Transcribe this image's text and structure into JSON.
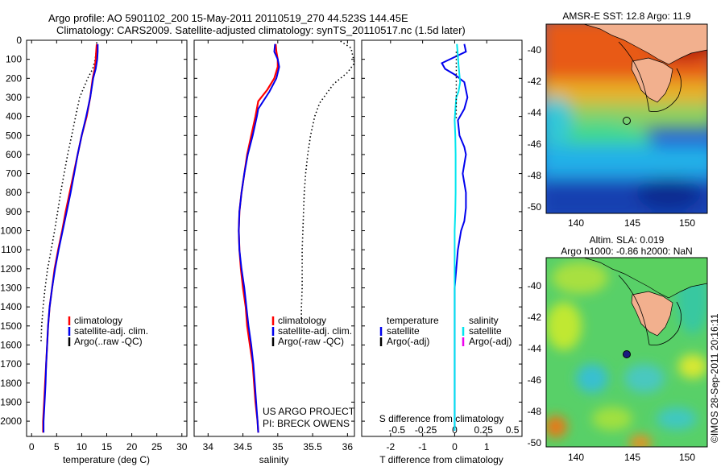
{
  "figure": {
    "title_line1": "Argo profile: AO 5901102_200 15-May-2011 20110519_270 44.523S 144.45E",
    "title_line2": "Climatology: CARS2009. Satellite-adjusted climatology: synTS_20110517.nc (1.5d later)",
    "credit_project": "US ARGO PROJECT",
    "credit_pi": "PI: BRECK OWENS",
    "imos_stamp": "©IMOS 28-Sep-2011 20:16:11",
    "colors": {
      "climatology": "#ff0000",
      "satellite": "#0000ee",
      "argo": "#000000",
      "salinity_sat": "#00e5ee",
      "argo_adj_salinity": "#ee00ee"
    }
  },
  "chart_data": [
    {
      "type": "line",
      "xlabel": "temperature (deg C)",
      "xlim": [
        -1,
        31
      ],
      "xticks": [
        "0",
        "5",
        "10",
        "15",
        "20",
        "25",
        "30"
      ],
      "ylim": [
        2080,
        0
      ],
      "yticks": [
        "0",
        "100",
        "200",
        "300",
        "400",
        "500",
        "600",
        "700",
        "800",
        "900",
        "1000",
        "1100",
        "1200",
        "1300",
        "1400",
        "1500",
        "1600",
        "1700",
        "1800",
        "1900",
        "2000"
      ],
      "legend": [
        "climatology",
        "satellite-adj. clim.",
        "Argo(..raw -QC)"
      ],
      "legend_position": "lower-right",
      "series": [
        {
          "name": "climatology",
          "points": [
            [
              13.0,
              20
            ],
            [
              12.9,
              60
            ],
            [
              12.8,
              100
            ],
            [
              12.6,
              150
            ],
            [
              12.2,
              200
            ],
            [
              11.7,
              300
            ],
            [
              11.0,
              400
            ],
            [
              10.0,
              500
            ],
            [
              9.2,
              600
            ],
            [
              8.4,
              700
            ],
            [
              7.6,
              800
            ],
            [
              6.8,
              900
            ],
            [
              6.1,
              1000
            ],
            [
              5.3,
              1100
            ],
            [
              4.6,
              1200
            ],
            [
              4.1,
              1300
            ],
            [
              3.6,
              1400
            ],
            [
              3.3,
              1500
            ],
            [
              3.1,
              1600
            ],
            [
              2.9,
              1700
            ],
            [
              2.7,
              1800
            ],
            [
              2.5,
              1900
            ],
            [
              2.3,
              2000
            ],
            [
              2.3,
              2060
            ]
          ]
        },
        {
          "name": "satellite-adj. clim.",
          "points": [
            [
              13.2,
              20
            ],
            [
              13.2,
              60
            ],
            [
              13.1,
              100
            ],
            [
              12.8,
              150
            ],
            [
              12.3,
              200
            ],
            [
              11.7,
              300
            ],
            [
              10.9,
              400
            ],
            [
              10.0,
              500
            ],
            [
              9.2,
              600
            ],
            [
              8.5,
              700
            ],
            [
              7.8,
              800
            ],
            [
              7.0,
              900
            ],
            [
              6.2,
              1000
            ],
            [
              5.4,
              1100
            ],
            [
              4.7,
              1200
            ],
            [
              4.1,
              1300
            ],
            [
              3.6,
              1400
            ],
            [
              3.3,
              1500
            ],
            [
              3.1,
              1600
            ],
            [
              2.9,
              1700
            ],
            [
              2.8,
              1800
            ],
            [
              2.6,
              1900
            ],
            [
              2.4,
              2000
            ],
            [
              2.4,
              2060
            ]
          ]
        },
        {
          "name": "Argo(..raw -QC)",
          "points": [
            [
              13.0,
              10
            ],
            [
              12.9,
              60
            ],
            [
              12.7,
              100
            ],
            [
              12.2,
              150
            ],
            [
              11.2,
              200
            ],
            [
              9.6,
              300
            ],
            [
              8.8,
              400
            ],
            [
              8.0,
              500
            ],
            [
              7.2,
              600
            ],
            [
              6.5,
              700
            ],
            [
              5.8,
              800
            ],
            [
              5.2,
              900
            ],
            [
              4.6,
              1000
            ],
            [
              3.9,
              1100
            ],
            [
              3.2,
              1200
            ],
            [
              2.7,
              1300
            ],
            [
              2.3,
              1400
            ],
            [
              2.0,
              1500
            ],
            [
              1.9,
              1580
            ]
          ]
        }
      ]
    },
    {
      "type": "line",
      "xlabel": "salinity",
      "xlim": [
        33.8,
        36.1
      ],
      "xticks": [
        "34",
        "34.5",
        "35",
        "35.5",
        "36"
      ],
      "ylim": [
        2080,
        0
      ],
      "legend": [
        "climatology",
        "satellite-adj. clim.",
        "Argo(-raw -QC)"
      ],
      "legend_position": "lower-right",
      "series": [
        {
          "name": "climatology",
          "points": [
            [
              34.97,
              20
            ],
            [
              34.98,
              60
            ],
            [
              35.0,
              100
            ],
            [
              35.0,
              140
            ],
            [
              34.95,
              200
            ],
            [
              34.85,
              260
            ],
            [
              34.72,
              320
            ],
            [
              34.68,
              400
            ],
            [
              34.62,
              500
            ],
            [
              34.56,
              600
            ],
            [
              34.52,
              700
            ],
            [
              34.48,
              800
            ],
            [
              34.45,
              900
            ],
            [
              34.44,
              1000
            ],
            [
              34.45,
              1100
            ],
            [
              34.47,
              1200
            ],
            [
              34.5,
              1300
            ],
            [
              34.54,
              1400
            ],
            [
              34.56,
              1500
            ],
            [
              34.6,
              1600
            ],
            [
              34.64,
              1700
            ],
            [
              34.66,
              1800
            ],
            [
              34.68,
              1900
            ],
            [
              34.71,
              2000
            ],
            [
              34.72,
              2060
            ]
          ]
        },
        {
          "name": "satellite-adj. clim.",
          "points": [
            [
              34.96,
              20
            ],
            [
              34.95,
              60
            ],
            [
              35.0,
              100
            ],
            [
              35.02,
              140
            ],
            [
              34.98,
              200
            ],
            [
              34.88,
              270
            ],
            [
              34.72,
              360
            ],
            [
              34.7,
              400
            ],
            [
              34.64,
              500
            ],
            [
              34.57,
              600
            ],
            [
              34.52,
              700
            ],
            [
              34.48,
              800
            ],
            [
              34.45,
              900
            ],
            [
              34.44,
              1000
            ],
            [
              34.45,
              1100
            ],
            [
              34.48,
              1200
            ],
            [
              34.52,
              1300
            ],
            [
              34.55,
              1400
            ],
            [
              34.58,
              1500
            ],
            [
              34.62,
              1600
            ],
            [
              34.65,
              1700
            ],
            [
              34.67,
              1800
            ],
            [
              34.69,
              1900
            ],
            [
              34.71,
              2000
            ],
            [
              34.72,
              2060
            ]
          ]
        },
        {
          "name": "Argo(-raw -QC)",
          "points": [
            [
              35.9,
              5
            ],
            [
              36.05,
              40
            ],
            [
              36.1,
              120
            ],
            [
              36.0,
              170
            ],
            [
              35.8,
              230
            ],
            [
              35.6,
              330
            ],
            [
              35.53,
              400
            ],
            [
              35.47,
              500
            ],
            [
              35.43,
              600
            ],
            [
              35.4,
              700
            ],
            [
              35.38,
              800
            ],
            [
              35.37,
              900
            ],
            [
              35.36,
              1000
            ],
            [
              35.35,
              1100
            ],
            [
              35.35,
              1200
            ],
            [
              35.35,
              1300
            ],
            [
              35.34,
              1400
            ],
            [
              35.34,
              1460
            ]
          ]
        }
      ]
    },
    {
      "type": "line",
      "xlabel": "T difference from climatology",
      "xlim": [
        -2.9,
        2.1
      ],
      "xticks": [
        "-2",
        "-1",
        "0",
        "1"
      ],
      "top_axis_label": "S difference from climatology",
      "top_ticks": [
        "-0.5",
        "-0.25",
        "0",
        "0.25",
        "0.5"
      ],
      "ylim": [
        2080,
        0
      ],
      "legend_temperature": {
        "heading": "temperature",
        "items": [
          "satellite",
          "Argo(-adj)"
        ]
      },
      "legend_salinity": {
        "heading": "salinity",
        "items": [
          "satellite",
          "Argo(-adj)"
        ]
      },
      "series": [
        {
          "name": "temperature satellite",
          "points": [
            [
              0.3,
              20
            ],
            [
              0.35,
              60
            ],
            [
              -0.4,
              120
            ],
            [
              -0.3,
              150
            ],
            [
              0.0,
              180
            ],
            [
              0.3,
              220
            ],
            [
              0.4,
              300
            ],
            [
              0.3,
              360
            ],
            [
              0.1,
              420
            ],
            [
              0.15,
              500
            ],
            [
              0.3,
              560
            ],
            [
              0.35,
              600
            ],
            [
              0.3,
              650
            ],
            [
              0.25,
              700
            ],
            [
              0.3,
              750
            ],
            [
              0.35,
              800
            ],
            [
              0.35,
              880
            ],
            [
              0.3,
              950
            ],
            [
              0.2,
              1000
            ],
            [
              0.1,
              1100
            ],
            [
              0.05,
              1200
            ],
            [
              0.0,
              1300
            ],
            [
              0.0,
              1500
            ],
            [
              0.0,
              1700
            ],
            [
              0.0,
              1900
            ],
            [
              0.0,
              2050
            ]
          ]
        },
        {
          "name": "salinity satellite",
          "points": [
            [
              0.07,
              20
            ],
            [
              0.1,
              80
            ],
            [
              0.12,
              130
            ],
            [
              0.17,
              220
            ],
            [
              0.12,
              270
            ],
            [
              0.05,
              300
            ],
            [
              0.02,
              370
            ],
            [
              0.0,
              420
            ],
            [
              0.02,
              500
            ],
            [
              0.03,
              600
            ],
            [
              0.03,
              700
            ],
            [
              0.03,
              800
            ],
            [
              0.02,
              900
            ],
            [
              0.0,
              1000
            ],
            [
              0.0,
              1100
            ],
            [
              0.0,
              1200
            ],
            [
              0.0,
              1300
            ],
            [
              0.0,
              1500
            ],
            [
              0.0,
              1700
            ],
            [
              0.0,
              1900
            ],
            [
              0.0,
              2050
            ]
          ]
        }
      ]
    },
    {
      "type": "heatmap",
      "title": "AMSR-E SST: 12.8 Argo: 11.9",
      "xticks": [
        "140",
        "145",
        "150"
      ],
      "yticks": [
        "-40",
        "-42",
        "-44",
        "-46",
        "-48",
        "-50"
      ],
      "argo_position": [
        144.45,
        -44.52
      ]
    },
    {
      "type": "heatmap",
      "title_line1": "Altim. SLA: 0.019",
      "title_line2": "Argo h1000: -0.86 h2000: NaN",
      "xticks": [
        "140",
        "145",
        "150"
      ],
      "yticks": [
        "-40",
        "-42",
        "-44",
        "-46",
        "-48",
        "-50"
      ],
      "argo_position": [
        144.45,
        -44.52
      ]
    }
  ]
}
